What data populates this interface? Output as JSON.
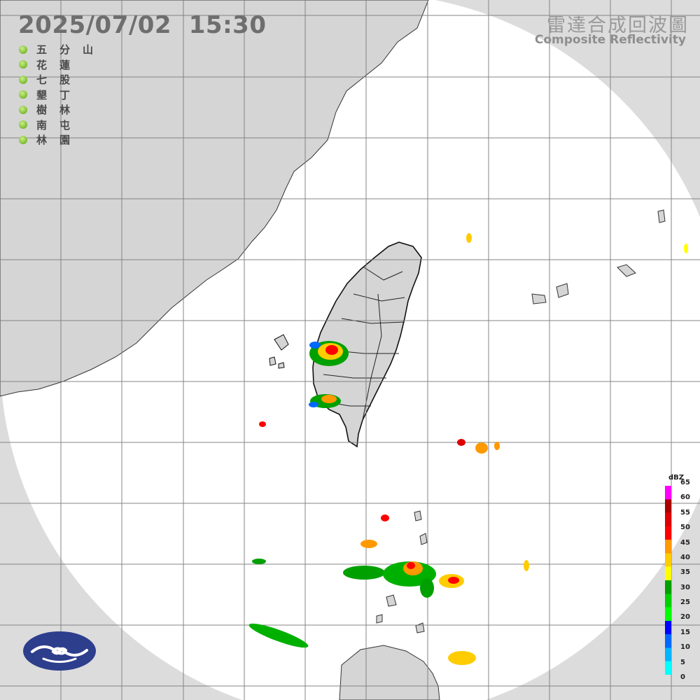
{
  "header": {
    "timestamp": "2025/07/02  15:30",
    "title_zh": "雷達合成回波圖",
    "title_en": "Composite Reflectivity"
  },
  "stations": [
    {
      "name": "五分山",
      "status_color": "#8cc63f"
    },
    {
      "name": "花蓮",
      "status_color": "#8cc63f"
    },
    {
      "name": "七股",
      "status_color": "#8cc63f"
    },
    {
      "name": "墾丁",
      "status_color": "#8cc63f"
    },
    {
      "name": "樹林",
      "status_color": "#8cc63f"
    },
    {
      "name": "南屯",
      "status_color": "#8cc63f"
    },
    {
      "name": "林園",
      "status_color": "#8cc63f"
    }
  ],
  "legend": {
    "unit": "dBZ",
    "ticks": [
      "0",
      "5",
      "10",
      "15",
      "20",
      "25",
      "30",
      "35",
      "40",
      "45",
      "50",
      "55",
      "60",
      "65"
    ],
    "colors": [
      "#00ffff",
      "#00b4ff",
      "#0068ff",
      "#0000ff",
      "#00ff00",
      "#00d000",
      "#00a000",
      "#ffff00",
      "#ffcc00",
      "#ff9900",
      "#ff0000",
      "#dd0000",
      "#aa0000",
      "#ff00ff"
    ]
  },
  "colors": {
    "radar_coverage": "#ffffff",
    "outside_coverage": "#dcdcdc",
    "land": "#d5d5d5",
    "coastline": "#333333",
    "grid": "#7a7a7a",
    "logo": "#2d3e8c"
  }
}
